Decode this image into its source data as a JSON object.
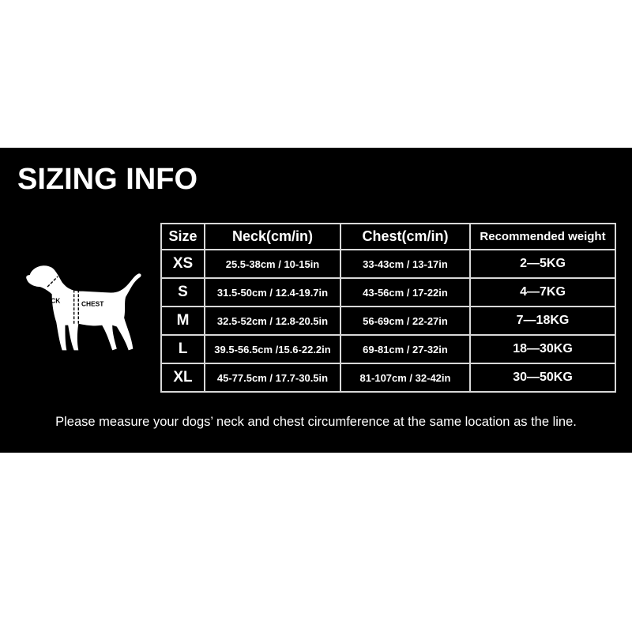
{
  "title": "SIZING INFO",
  "diagram": {
    "neck_label": "NECK",
    "chest_label": "CHEST"
  },
  "table": {
    "headers": [
      "Size",
      "Neck(cm/in)",
      "Chest(cm/in)",
      "Recommended weight"
    ],
    "rows": [
      [
        "XS",
        "25.5-38cm / 10-15in",
        "33-43cm / 13-17in",
        "2—5KG"
      ],
      [
        "S",
        "31.5-50cm / 12.4-19.7in",
        "43-56cm / 17-22in",
        "4—7KG"
      ],
      [
        "M",
        "32.5-52cm / 12.8-20.5in",
        "56-69cm / 22-27in",
        "7—18KG"
      ],
      [
        "L",
        "39.5-56.5cm /15.6-22.2in",
        "69-81cm / 27-32in",
        "18—30KG"
      ],
      [
        "XL",
        "45-77.5cm / 17.7-30.5in",
        "81-107cm / 32-42in",
        "30—50KG"
      ]
    ]
  },
  "note": "Please measure your dogs’ neck and chest circumference at the same location as the line."
}
